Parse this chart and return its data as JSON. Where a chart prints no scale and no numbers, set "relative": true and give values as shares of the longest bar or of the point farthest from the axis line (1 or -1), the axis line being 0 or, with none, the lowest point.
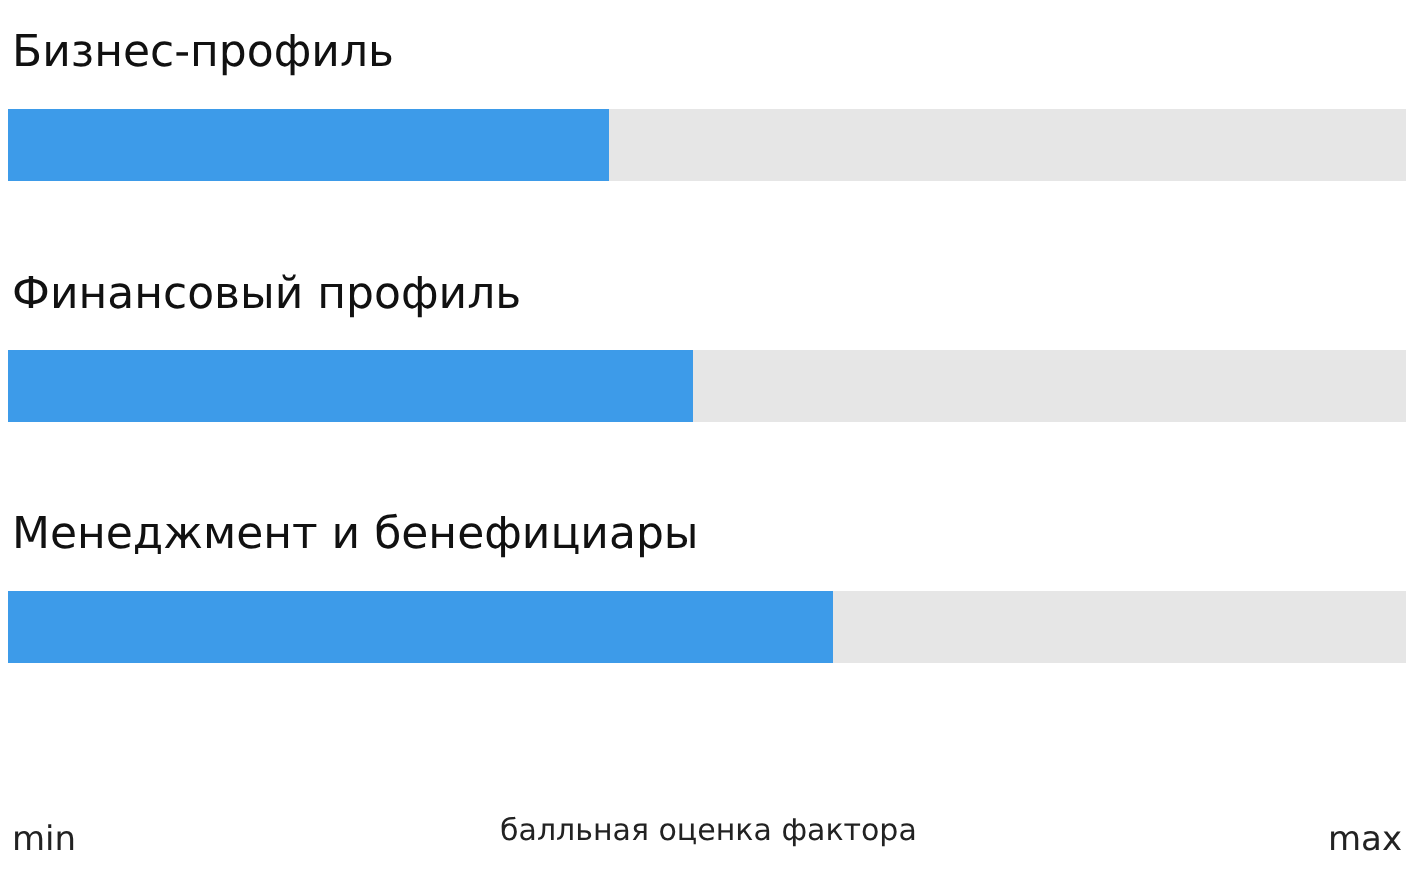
{
  "chart_data": {
    "type": "bar",
    "orientation": "horizontal",
    "relative": true,
    "stacked": true,
    "categories": [
      "Бизнес-профиль",
      "Финансовый профиль",
      "Менеджмент и бенефициары"
    ],
    "series": [
      {
        "color": "#3d9be9",
        "values": [
          0.43,
          0.49,
          0.59
        ]
      },
      {
        "color": "#e6e6e6",
        "values": [
          0.57,
          0.51,
          0.41
        ]
      }
    ],
    "annotations": [
      "min",
      "балльная оценка фактора",
      "max"
    ]
  }
}
